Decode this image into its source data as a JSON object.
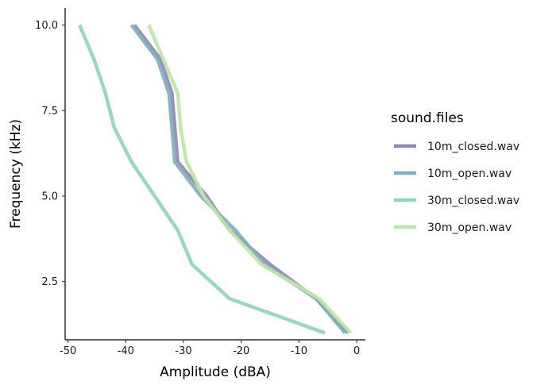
{
  "chart_data": {
    "type": "line",
    "title": "",
    "xlabel": "Amplitude (dBA)",
    "ylabel": "Frequency (kHz)",
    "xlim": [
      -50.5,
      1.5
    ],
    "ylim": [
      0.8,
      10.5
    ],
    "x_ticks": [
      -50,
      -40,
      -30,
      -20,
      -10,
      0
    ],
    "x_tick_labels": [
      "-50",
      "-40",
      "-30",
      "-20",
      "-10",
      "0"
    ],
    "y_ticks": [
      2.5,
      5.0,
      7.5,
      10.0
    ],
    "y_tick_labels": [
      "2.5",
      "5.0",
      "7.5",
      "10.0"
    ],
    "grid": false,
    "legend": {
      "title": "sound.files",
      "position": "right"
    },
    "series": [
      {
        "name": "10m_closed.wav",
        "color": "#8e8ab4",
        "points": [
          [
            -1.5,
            1
          ],
          [
            -7,
            2
          ],
          [
            -15,
            3
          ],
          [
            -22,
            4
          ],
          [
            -26,
            5
          ],
          [
            -31,
            6
          ],
          [
            -31.5,
            7
          ],
          [
            -32,
            8
          ],
          [
            -34,
            9
          ],
          [
            -38.5,
            10
          ]
        ]
      },
      {
        "name": "10m_open.wav",
        "color": "#7fb0bf",
        "points": [
          [
            -2,
            1
          ],
          [
            -7,
            2
          ],
          [
            -16,
            3
          ],
          [
            -21,
            4
          ],
          [
            -27,
            5
          ],
          [
            -31.5,
            6
          ],
          [
            -32,
            7
          ],
          [
            -32.5,
            8
          ],
          [
            -34.5,
            9
          ],
          [
            -39,
            10
          ]
        ]
      },
      {
        "name": "30m_closed.wav",
        "color": "#8fd4be",
        "points": [
          [
            -5.5,
            1
          ],
          [
            -22,
            2
          ],
          [
            -28.5,
            3
          ],
          [
            -31,
            4
          ],
          [
            -35,
            5
          ],
          [
            -39,
            6
          ],
          [
            -42,
            7
          ],
          [
            -43.5,
            8
          ],
          [
            -45.5,
            9
          ],
          [
            -48,
            10
          ]
        ]
      },
      {
        "name": "30m_open.wav",
        "color": "#bde6a6",
        "points": [
          [
            -1,
            1
          ],
          [
            -6.5,
            2
          ],
          [
            -16.5,
            3
          ],
          [
            -22,
            4
          ],
          [
            -26.5,
            5
          ],
          [
            -29.5,
            6
          ],
          [
            -30.5,
            7
          ],
          [
            -31,
            8
          ],
          [
            -33.5,
            9
          ],
          [
            -36,
            10
          ]
        ]
      }
    ]
  }
}
